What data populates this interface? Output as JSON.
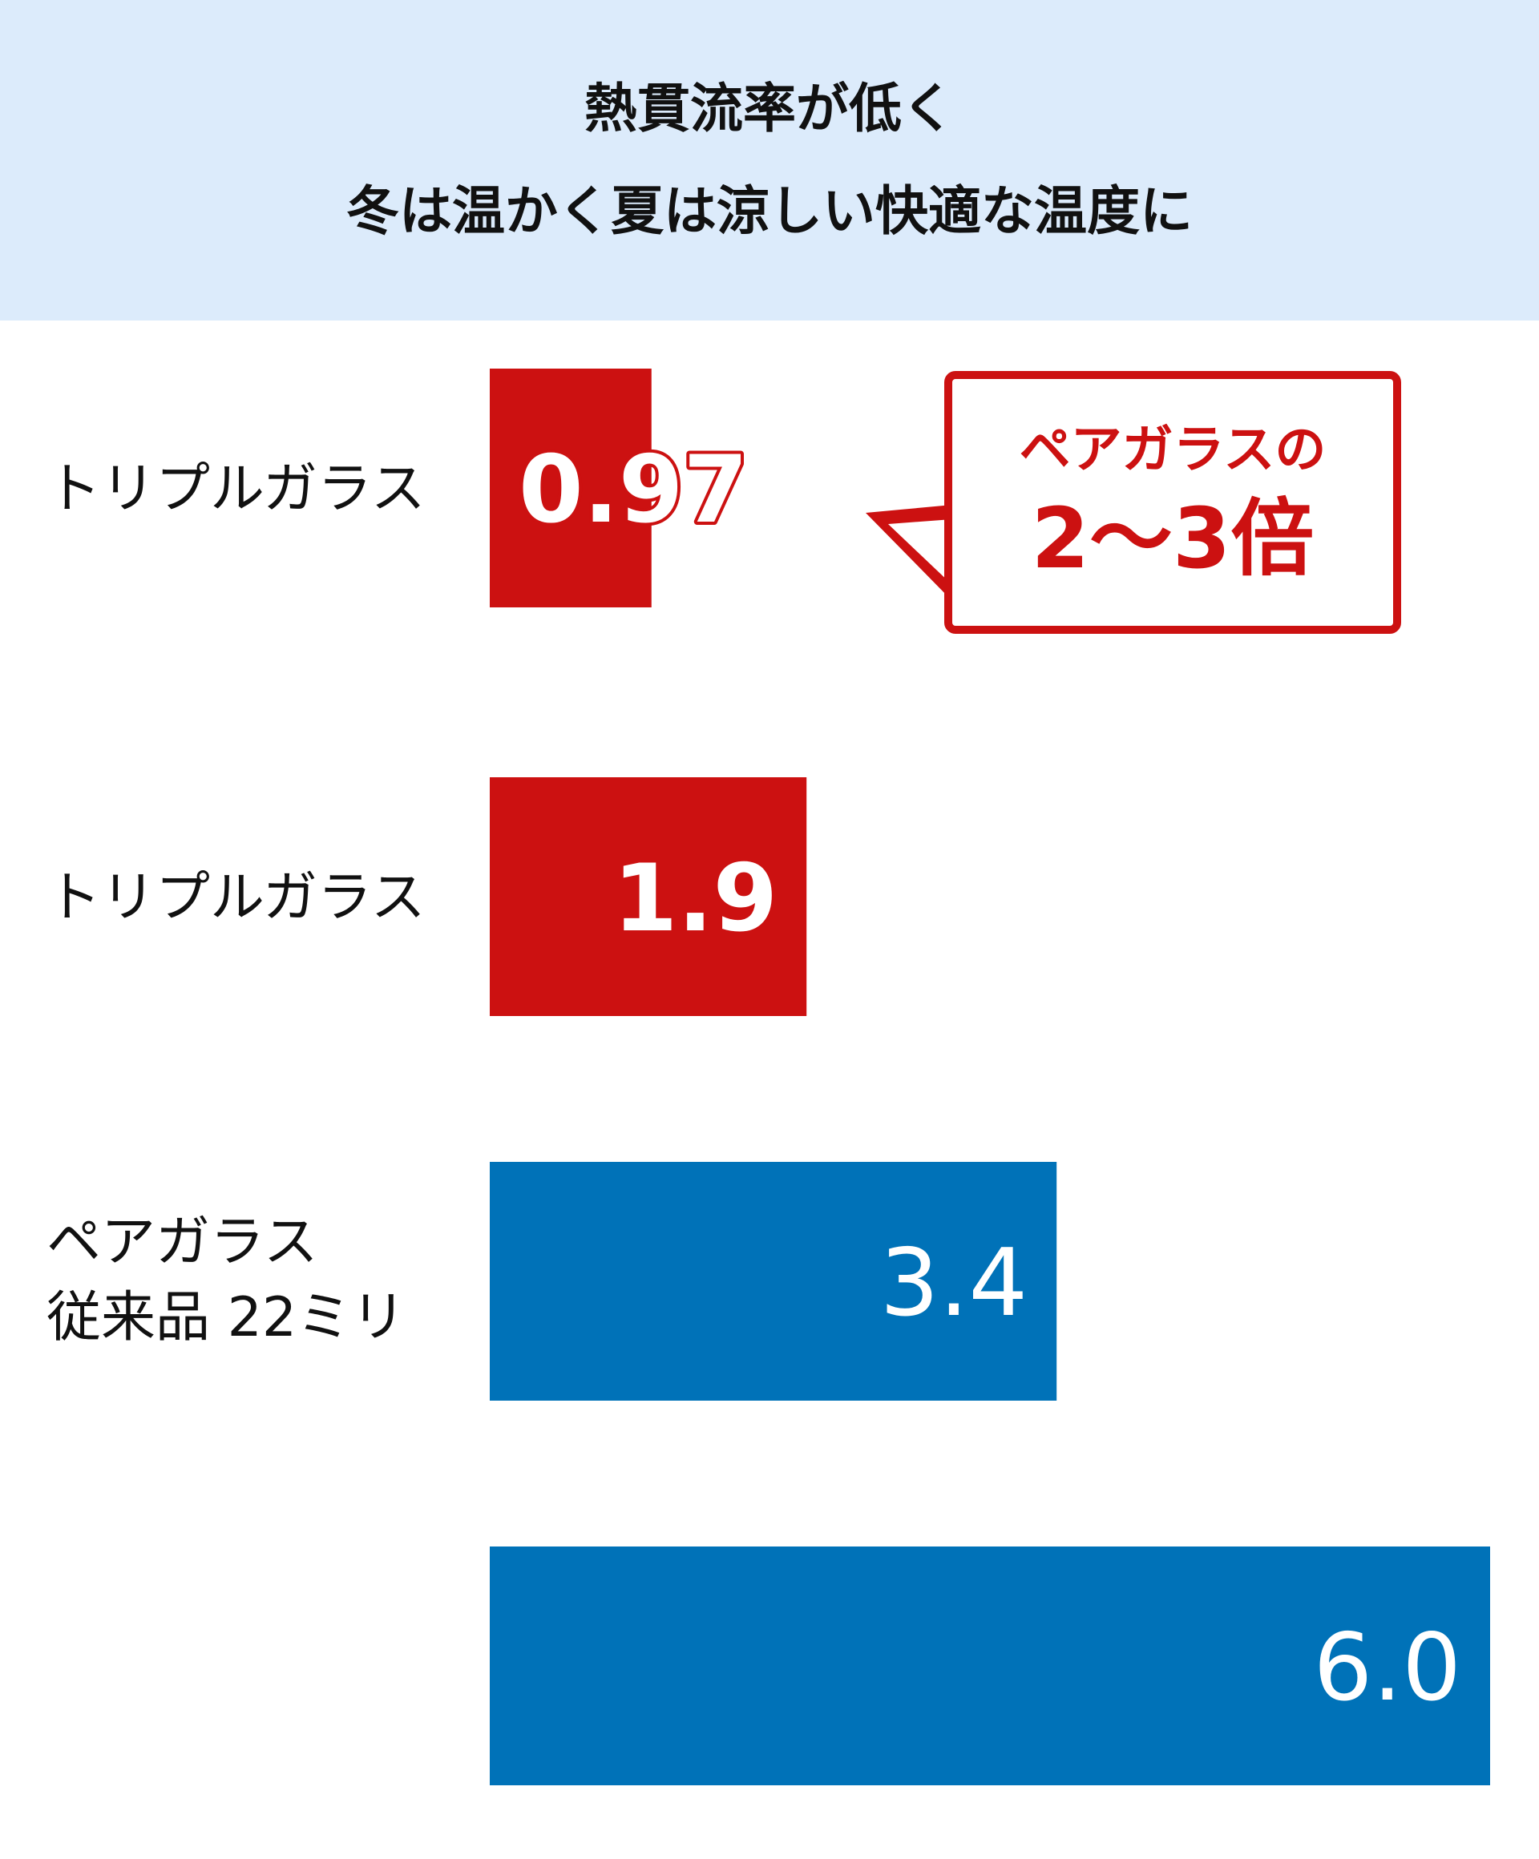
{
  "header": {
    "title_line1": "熱貫流率が低く",
    "title_line2": "冬は温かく夏は涼しい快適な温度に"
  },
  "callout": {
    "line1": "ペアガラスの",
    "line2": "2～3倍"
  },
  "colors": {
    "header_bg": "#dcebfb",
    "red": "#cc1111",
    "blue": "#0072b8"
  },
  "chart_data": {
    "type": "bar",
    "orientation": "horizontal",
    "xlim": [
      0,
      6.0
    ],
    "bars": [
      {
        "label_lines": [
          "トリプルガラス"
        ],
        "value": 0.97,
        "value_label": "0.97",
        "color": "#cc1111"
      },
      {
        "label_lines": [
          "トリプルガラス"
        ],
        "value": 1.9,
        "value_label": "1.9",
        "color": "#cc1111"
      },
      {
        "label_lines": [
          "ペアガラス",
          "従来品 22ミリ"
        ],
        "value": 3.4,
        "value_label": "3.4",
        "color": "#0072b8"
      },
      {
        "label_lines": [],
        "value": 6.0,
        "value_label": "6.0",
        "color": "#0072b8"
      }
    ]
  }
}
